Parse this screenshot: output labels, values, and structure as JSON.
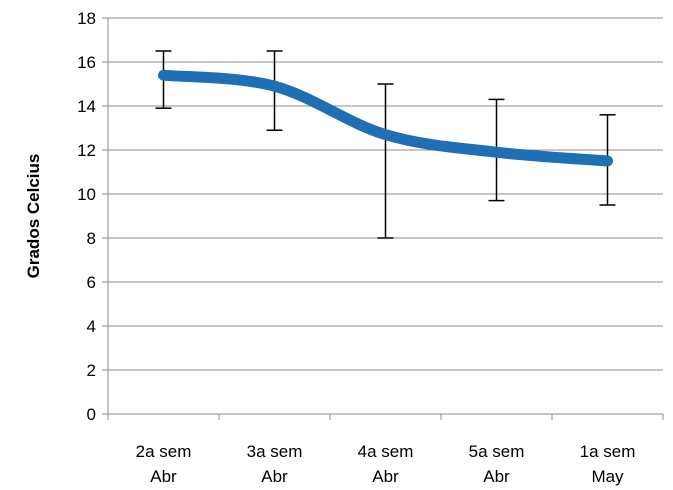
{
  "chart_data": {
    "type": "line",
    "title": "",
    "xlabel": "",
    "ylabel": "Grados Celcius",
    "ylim": [
      0,
      18
    ],
    "ytick_step": 2,
    "grid": true,
    "legend": "none",
    "categories": [
      [
        "2a sem",
        "Abr"
      ],
      [
        "3a sem",
        "Abr"
      ],
      [
        "4a sem",
        "Abr"
      ],
      [
        "5a sem",
        "Abr"
      ],
      [
        "1a sem",
        "May"
      ]
    ],
    "series": [
      {
        "values": [
          15.4,
          14.9,
          12.7,
          11.9,
          11.5
        ],
        "error_low": [
          13.9,
          12.9,
          8.0,
          9.7,
          9.5
        ],
        "error_high": [
          16.5,
          16.5,
          15.0,
          14.3,
          13.6
        ],
        "color": "#1f6fb5"
      }
    ],
    "colors": {
      "grid": "#8c8c8c",
      "axis": "#8c8c8c",
      "errorbar": "#000000"
    }
  }
}
